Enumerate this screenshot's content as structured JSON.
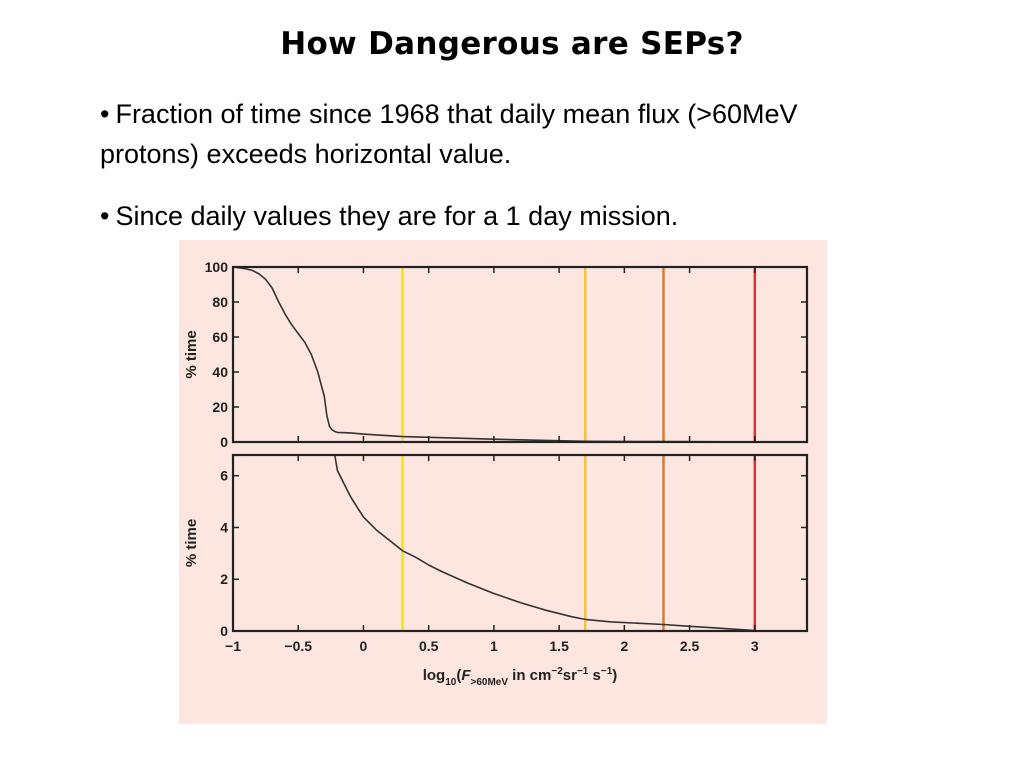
{
  "title": "How Dangerous are SEPs?",
  "bullets": [
    "Fraction of time since 1968 that daily mean flux (>60MeV protons) exceeds horizontal value.",
    "Since daily values they are for a 1 day mission."
  ],
  "bullet_marker": "•",
  "colors": {
    "background_panel": "#fde6df",
    "curve": "#333333",
    "axes": "#222222",
    "vline_yellow": "#f4df1e",
    "vline_gold": "#f6c13a",
    "vline_orange": "#e07a2a",
    "vline_red": "#d8323c"
  },
  "chart_data": [
    {
      "type": "line",
      "title": "",
      "xlabel": "",
      "ylabel": "% time",
      "xlim": [
        -1,
        3.4
      ],
      "ylim": [
        0,
        100
      ],
      "y_ticks": [
        0,
        20,
        40,
        60,
        80,
        100
      ],
      "x_tick_labels_shown": false,
      "grid": false,
      "series": [
        {
          "x": [
            -1.0,
            -0.9,
            -0.85,
            -0.8,
            -0.75,
            -0.7,
            -0.65,
            -0.6,
            -0.55,
            -0.5,
            -0.45,
            -0.4,
            -0.35,
            -0.3,
            -0.28,
            -0.26,
            -0.24,
            -0.22,
            -0.2,
            -0.1,
            0.0,
            0.3,
            1.0,
            1.7,
            2.3,
            3.0
          ],
          "y": [
            100,
            99,
            98,
            96,
            93,
            88,
            80,
            73,
            67,
            62,
            57,
            50,
            40,
            26,
            15,
            9,
            7,
            6,
            5.5,
            5.2,
            4.5,
            3.1,
            1.6,
            0.4,
            0.2,
            0.03
          ]
        }
      ],
      "vertical_lines": [
        {
          "x": 0.3,
          "color": "#f4df1e"
        },
        {
          "x": 1.7,
          "color": "#f6c13a"
        },
        {
          "x": 2.3,
          "color": "#e07a2a"
        },
        {
          "x": 3.0,
          "color": "#d8323c"
        }
      ]
    },
    {
      "type": "line",
      "title": "",
      "xlabel": "log10(F>60MeV in cm−2sr−1 s−1)",
      "xlabel_parts": {
        "pre": "log",
        "sub1": "10",
        "mid": "(",
        "var": "F",
        "sub2": ">60MeV",
        "post": " in cm",
        "sup1": "−2",
        "post2": "sr",
        "sup2": "−1",
        "post3": " s",
        "sup3": "−1",
        "post4": ")"
      },
      "ylabel": "% time",
      "xlim": [
        -1,
        3.4
      ],
      "ylim": [
        0,
        6.8
      ],
      "x_ticks": [
        -1,
        -0.5,
        0,
        0.5,
        1,
        1.5,
        2,
        2.5,
        3
      ],
      "x_tick_labels": [
        "−1",
        "−0.5",
        "0",
        "0.5",
        "1",
        "1.5",
        "2",
        "2.5",
        "3"
      ],
      "y_ticks": [
        0,
        2,
        4,
        6
      ],
      "grid": false,
      "series": [
        {
          "x": [
            -0.22,
            -0.2,
            -0.15,
            -0.1,
            -0.05,
            0.0,
            0.1,
            0.2,
            0.3,
            0.4,
            0.5,
            0.6,
            0.8,
            1.0,
            1.2,
            1.4,
            1.6,
            1.7,
            1.9,
            2.1,
            2.3,
            2.5,
            2.7,
            2.9,
            3.0
          ],
          "y": [
            6.8,
            6.2,
            5.7,
            5.2,
            4.8,
            4.4,
            3.9,
            3.5,
            3.1,
            2.85,
            2.55,
            2.3,
            1.85,
            1.45,
            1.1,
            0.8,
            0.55,
            0.45,
            0.35,
            0.3,
            0.25,
            0.18,
            0.12,
            0.05,
            0.02
          ]
        }
      ],
      "vertical_lines": [
        {
          "x": 0.3,
          "color": "#f4df1e"
        },
        {
          "x": 1.7,
          "color": "#f6c13a"
        },
        {
          "x": 2.3,
          "color": "#e07a2a"
        },
        {
          "x": 3.0,
          "color": "#d8323c"
        }
      ]
    }
  ]
}
